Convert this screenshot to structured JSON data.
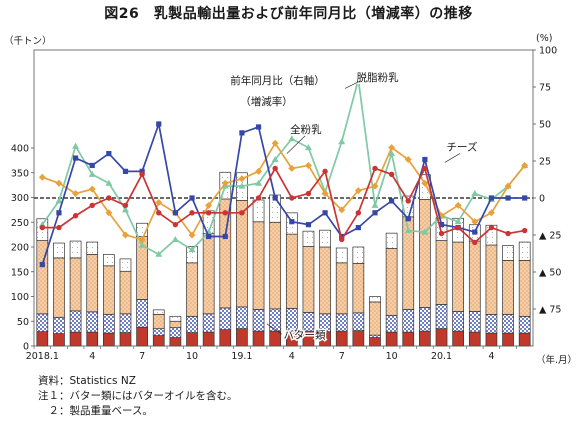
{
  "title": "図26　乳製品輸出量および前年同月比（増減率）の推移",
  "left_unit": "（千トン）",
  "right_unit": "(%)",
  "x_unit": "（年.月）",
  "notes": [
    "資料：Statistics NZ",
    "注１：バター類にはバターオイルを含む。",
    "　２：製品重量ベース。"
  ],
  "chart_data": {
    "type": "bar",
    "categories": [
      "2018.1",
      "",
      "",
      "4",
      "",
      "",
      "7",
      "",
      "",
      "10",
      "",
      "",
      "19.1",
      "",
      "",
      "4",
      "",
      "",
      "7",
      "",
      "",
      "10",
      "",
      "",
      "20.1",
      "",
      "",
      "4",
      "",
      ""
    ],
    "ylim": [
      0,
      400
    ],
    "yticks": [
      0,
      50,
      100,
      150,
      200,
      250,
      300,
      350,
      400
    ],
    "y2lim": [
      -100,
      100
    ],
    "y2ticks": [
      100,
      75,
      50,
      25,
      0,
      -25,
      -50,
      -75
    ],
    "y2ticklabels": [
      "100",
      "75",
      "50",
      "25",
      "0",
      "▲ 25",
      "▲ 50",
      "▲ 75"
    ],
    "stack": [
      {
        "name": "バター類",
        "color": "#c0392b",
        "values": [
          29,
          25,
          28,
          28,
          26,
          27,
          38,
          21,
          17,
          27,
          28,
          33,
          35,
          30,
          30,
          32,
          30,
          29,
          30,
          31,
          17,
          28,
          28,
          30,
          35,
          30,
          28,
          26,
          26,
          26
        ]
      },
      {
        "name": "",
        "color": "#b9c3e6",
        "values": [
          36,
          33,
          43,
          41,
          38,
          38,
          56,
          14,
          20,
          33,
          37,
          44,
          44,
          44,
          45,
          44,
          38,
          36,
          35,
          36,
          5,
          34,
          46,
          48,
          49,
          40,
          42,
          38,
          38,
          34
        ]
      },
      {
        "name": "全粉乳",
        "color": "#f5c99a",
        "values": [
          148,
          120,
          107,
          116,
          98,
          86,
          127,
          29,
          13,
          108,
          162,
          220,
          215,
          177,
          175,
          150,
          133,
          135,
          103,
          100,
          67,
          135,
          187,
          218,
          129,
          140,
          142,
          140,
          109,
          113
        ]
      },
      {
        "name": "脱脂粉乳",
        "color": "#ffffff",
        "values": [
          44,
          30,
          34,
          25,
          23,
          25,
          27,
          9,
          10,
          33,
          46,
          54,
          56,
          44,
          55,
          43,
          31,
          34,
          30,
          33,
          11,
          31,
          42,
          50,
          46,
          48,
          33,
          40,
          30,
          37
        ]
      }
    ],
    "lines": [
      {
        "name": "脱脂粉乳",
        "color": "#7fc9a4",
        "marker": "triangle",
        "values": [
          -18,
          -2,
          35,
          16,
          10,
          -8,
          -32,
          -38,
          -28,
          -35,
          -23,
          8,
          8,
          10,
          26,
          40,
          34,
          4,
          38,
          80,
          -5,
          30,
          -22,
          -23,
          -12,
          -16,
          3,
          -1,
          8,
          22
        ]
      },
      {
        "name": "全粉乳",
        "color": "#e9a23b",
        "marker": "diamond",
        "values": [
          14,
          10,
          3,
          6,
          -10,
          -25,
          -28,
          -3,
          -10,
          -25,
          -5,
          10,
          13,
          18,
          37,
          20,
          22,
          3,
          -8,
          5,
          8,
          34,
          26,
          10,
          -12,
          -5,
          -16,
          -10,
          8,
          22
        ]
      },
      {
        "name": "チーズ",
        "color": "#3547a8",
        "marker": "square",
        "values": [
          -45,
          -10,
          27,
          22,
          30,
          18,
          18,
          50,
          -10,
          0,
          -26,
          -26,
          44,
          48,
          0,
          -16,
          -18,
          -10,
          -26,
          -20,
          -10,
          -2,
          -14,
          26,
          -18,
          -20,
          -23,
          0,
          0,
          0
        ]
      },
      {
        "name": "バター類",
        "color": "#cc3333",
        "marker": "circle",
        "values": [
          -20,
          -20,
          -12,
          -5,
          0,
          -5,
          16,
          -10,
          -18,
          -10,
          -10,
          -10,
          -10,
          0,
          20,
          0,
          3,
          18,
          -28,
          -10,
          20,
          16,
          -2,
          20,
          -24,
          -20,
          -30,
          -20,
          -24,
          -22
        ]
      }
    ],
    "annotations": [
      {
        "text": "前年同月比（右軸）",
        "x": 11.8,
        "y2": 77
      },
      {
        "text": "（増減率）",
        "x": 12.4,
        "y2": 63
      },
      {
        "text": "脱脂粉乳",
        "x": 19.4,
        "y2": 79
      },
      {
        "text": "全粉乳",
        "x": 15.4,
        "y2": 44
      },
      {
        "text": "チーズ",
        "x": 24.8,
        "y2": 32
      },
      {
        "text": "バター類",
        "x": 15.0,
        "y2": -95
      }
    ],
    "zero_line": "dashed"
  }
}
